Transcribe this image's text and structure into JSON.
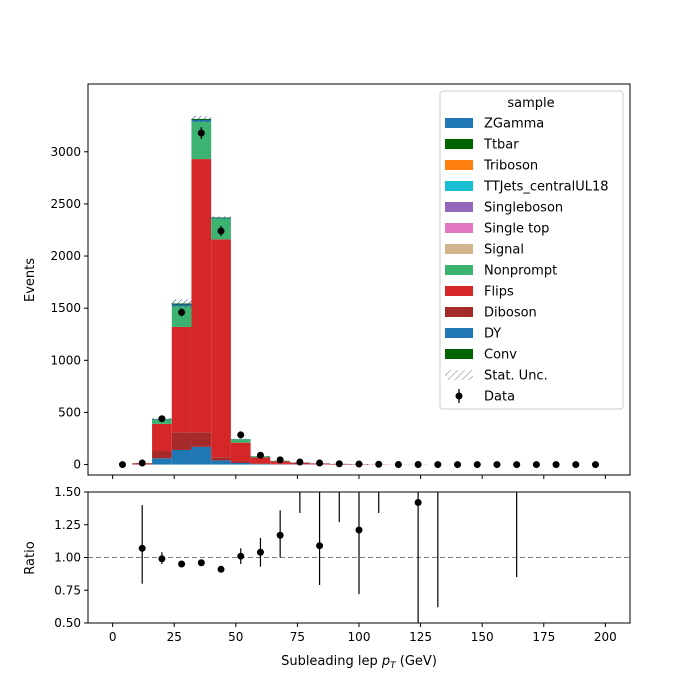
{
  "chart_data": [
    {
      "type": "bar",
      "stacked": true,
      "ylabel": "Events",
      "xlim": [
        -10,
        210
      ],
      "ylim": [
        -100,
        3650
      ],
      "yticks": [
        0,
        500,
        1000,
        1500,
        2000,
        2500,
        3000
      ],
      "bin_edges": [
        0,
        8,
        16,
        24,
        32,
        40,
        48,
        56,
        64,
        72,
        80,
        88,
        96,
        104,
        112,
        120,
        128,
        136,
        144,
        152,
        160,
        168,
        176,
        184,
        192,
        200
      ],
      "legend": {
        "title": "sample",
        "placement": "top-right",
        "entries": [
          "ZGamma",
          "Ttbar",
          "Triboson",
          "TTJets_centralUL18",
          "Singleboson",
          "Single top",
          "Signal",
          "Nonprompt",
          "Flips",
          "Diboson",
          "DY",
          "Conv",
          "Stat. Unc.",
          "Data"
        ]
      },
      "series": [
        {
          "name": "DY",
          "color": "#1f77b4",
          "values": [
            0,
            0,
            60,
            140,
            170,
            40,
            15,
            5,
            2,
            1,
            0,
            0,
            0,
            0,
            0,
            0,
            0,
            0,
            0,
            0,
            0,
            0,
            0,
            0,
            0
          ]
        },
        {
          "name": "Diboson",
          "color": "#a52a2a",
          "values": [
            0,
            5,
            70,
            170,
            140,
            30,
            15,
            8,
            5,
            3,
            2,
            1,
            1,
            0,
            0,
            0,
            0,
            0,
            0,
            0,
            0,
            0,
            0,
            0,
            0
          ]
        },
        {
          "name": "Flips",
          "color": "#d62728",
          "values": [
            0,
            8,
            260,
            1010,
            2620,
            2090,
            180,
            55,
            25,
            14,
            8,
            5,
            3,
            2,
            1,
            1,
            0,
            0,
            0,
            0,
            0,
            0,
            0,
            0,
            0
          ]
        },
        {
          "name": "Nonprompt",
          "color": "#3cb371",
          "values": [
            0,
            2,
            40,
            200,
            360,
            200,
            30,
            10,
            5,
            3,
            2,
            1,
            1,
            0,
            0,
            0,
            0,
            0,
            0,
            0,
            0,
            0,
            0,
            0,
            0
          ]
        },
        {
          "name": "ZGamma",
          "color": "#1f77b4",
          "values": [
            0,
            0,
            5,
            15,
            15,
            5,
            2,
            1,
            0,
            0,
            0,
            0,
            0,
            0,
            0,
            0,
            0,
            0,
            0,
            0,
            0,
            0,
            0,
            0,
            0
          ]
        },
        {
          "name": "Conv",
          "color": "#006400",
          "values": [
            0,
            0,
            3,
            10,
            10,
            5,
            2,
            1,
            0,
            0,
            0,
            0,
            0,
            0,
            0,
            0,
            0,
            0,
            0,
            0,
            0,
            0,
            0,
            0,
            0
          ]
        }
      ],
      "stat_unc": [
        0,
        2,
        10,
        40,
        30,
        10,
        5,
        3,
        2,
        1,
        1,
        1,
        1,
        0,
        0,
        0,
        0,
        0,
        0,
        0,
        0,
        0,
        0,
        0,
        0
      ],
      "data": {
        "name": "Data",
        "x": [
          4,
          12,
          20,
          28,
          36,
          44,
          52,
          60,
          68,
          76,
          84,
          92,
          100,
          108,
          116,
          124,
          132,
          140,
          148,
          156,
          164,
          172,
          180,
          188,
          196
        ],
        "y": [
          0,
          15,
          440,
          1460,
          3180,
          2240,
          285,
          90,
          45,
          25,
          15,
          8,
          5,
          3,
          1,
          1,
          0,
          0,
          0,
          0,
          0,
          0,
          0,
          0,
          0
        ],
        "yerr": [
          0,
          4,
          21,
          38,
          56,
          47,
          17,
          9,
          7,
          5,
          4,
          3,
          2,
          2,
          1,
          1,
          0,
          0,
          0,
          0,
          0,
          0,
          0,
          0,
          0
        ]
      }
    },
    {
      "type": "scatter",
      "xlabel": "Subleading lep p_T (GeV)",
      "ylabel": "Ratio",
      "xlim": [
        -10,
        210
      ],
      "ylim": [
        0.5,
        1.5
      ],
      "xticks": [
        0,
        25,
        50,
        75,
        100,
        125,
        150,
        175,
        200
      ],
      "yticks": [
        0.5,
        0.75,
        1.0,
        1.25,
        1.5
      ],
      "reference_line": 1.0,
      "points": [
        {
          "x": 12,
          "y": 1.07,
          "lo": 0.8,
          "hi": 1.4
        },
        {
          "x": 20,
          "y": 0.99,
          "lo": 0.95,
          "hi": 1.04
        },
        {
          "x": 28,
          "y": 0.95,
          "lo": 0.93,
          "hi": 0.97
        },
        {
          "x": 36,
          "y": 0.96,
          "lo": 0.94,
          "hi": 0.98
        },
        {
          "x": 44,
          "y": 0.91,
          "lo": 0.89,
          "hi": 0.93
        },
        {
          "x": 52,
          "y": 1.01,
          "lo": 0.95,
          "hi": 1.07
        },
        {
          "x": 60,
          "y": 1.04,
          "lo": 0.93,
          "hi": 1.15
        },
        {
          "x": 68,
          "y": 1.17,
          "lo": 1.0,
          "hi": 1.36
        },
        {
          "x": 76,
          "y": null,
          "lo": 1.34,
          "hi": 1.5
        },
        {
          "x": 84,
          "y": 1.09,
          "lo": 0.79,
          "hi": 1.5
        },
        {
          "x": 92,
          "y": null,
          "lo": 1.27,
          "hi": 1.5
        },
        {
          "x": 100,
          "y": 1.21,
          "lo": 0.72,
          "hi": 1.5
        },
        {
          "x": 108,
          "y": null,
          "lo": 1.34,
          "hi": 1.5
        },
        {
          "x": 124,
          "y": 1.42,
          "lo": 0.5,
          "hi": 1.5
        },
        {
          "x": 132,
          "y": null,
          "lo": 0.62,
          "hi": 1.5
        },
        {
          "x": 164,
          "y": null,
          "lo": 0.85,
          "hi": 1.5
        }
      ]
    }
  ],
  "labels": {
    "main_ylabel": "Events",
    "ratio_ylabel": "Ratio",
    "xlabel_prefix": "Subleading lep ",
    "xlabel_p": "p",
    "xlabel_sub": "T",
    "xlabel_suffix": " (GeV)"
  }
}
